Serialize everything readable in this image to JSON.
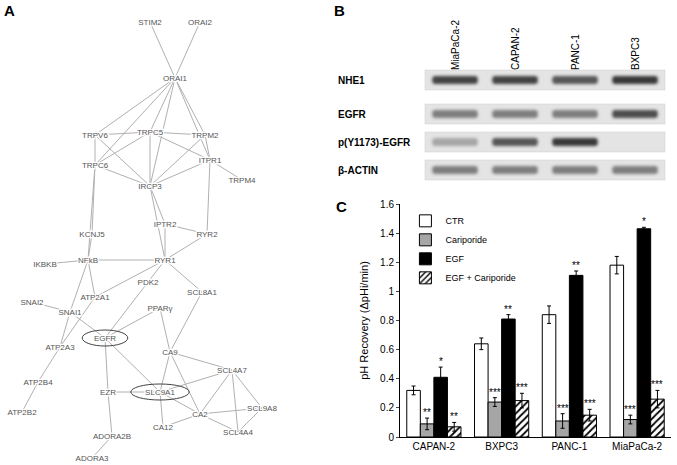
{
  "panel_labels": [
    "A",
    "B",
    "C"
  ],
  "network": {
    "nodes": [
      {
        "label": "STIM2"
      },
      {
        "label": "ORAI2"
      },
      {
        "label": "ORAI1"
      },
      {
        "label": "TRPV6"
      },
      {
        "label": "TRPC5"
      },
      {
        "label": "TRPM2"
      },
      {
        "label": "TRPC6"
      },
      {
        "label": "ITPR1"
      },
      {
        "label": "TRPM4"
      },
      {
        "label": "IRCP3"
      },
      {
        "label": "IPTR2"
      },
      {
        "label": "RYR2"
      },
      {
        "label": "KCNJ5"
      },
      {
        "label": "IKBKB"
      },
      {
        "label": "NFkB"
      },
      {
        "label": "RYR1"
      },
      {
        "label": "PDK2"
      },
      {
        "label": "SCL8A1"
      },
      {
        "label": "ATP2A1"
      },
      {
        "label": "SNAI2"
      },
      {
        "label": "SNAI1"
      },
      {
        "label": "PPARγ"
      },
      {
        "label": "ATP2A3"
      },
      {
        "label": "EGFR",
        "highlight": true
      },
      {
        "label": "CA9"
      },
      {
        "label": "ATP2B4"
      },
      {
        "label": "ATP2B2"
      },
      {
        "label": "EZR"
      },
      {
        "label": "SLC9A1",
        "highlight": true
      },
      {
        "label": "SCL4A7"
      },
      {
        "label": "CA2"
      },
      {
        "label": "CA12"
      },
      {
        "label": "SCL9A8"
      },
      {
        "label": "SCL4A4"
      },
      {
        "label": "ADORA2B"
      },
      {
        "label": "ADORA3"
      }
    ],
    "edges": [
      [
        "STIM2",
        "ORAI1"
      ],
      [
        "ORAI2",
        "ORAI1"
      ],
      [
        "ORAI1",
        "TRPV6"
      ],
      [
        "ORAI1",
        "TRPC5"
      ],
      [
        "ORAI1",
        "TRPC6"
      ],
      [
        "ORAI1",
        "IRCP3"
      ],
      [
        "ORAI1",
        "TRPM2"
      ],
      [
        "ORAI1",
        "ITPR1"
      ],
      [
        "TRPV6",
        "TRPC5"
      ],
      [
        "TRPV6",
        "TRPC6"
      ],
      [
        "TRPV6",
        "IRCP3"
      ],
      [
        "TRPC5",
        "TRPC6"
      ],
      [
        "TRPC5",
        "IRCP3"
      ],
      [
        "TRPC5",
        "TRPM2"
      ],
      [
        "TRPC5",
        "ITPR1"
      ],
      [
        "TRPC6",
        "IRCP3"
      ],
      [
        "TRPM2",
        "ITPR1"
      ],
      [
        "ITPR1",
        "IRCP3"
      ],
      [
        "ITPR1",
        "TRPM4"
      ],
      [
        "TRPM2",
        "IRCP3"
      ],
      [
        "IRCP3",
        "IPTR2"
      ],
      [
        "IRCP3",
        "RYR1"
      ],
      [
        "ITPR1",
        "RYR2"
      ],
      [
        "IPTR2",
        "RYR2"
      ],
      [
        "RYR1",
        "RYR2"
      ],
      [
        "RYR1",
        "IPTR2"
      ],
      [
        "TRPC6",
        "KCNJ5"
      ],
      [
        "KCNJ5",
        "NFkB"
      ],
      [
        "IKBKB",
        "NFkB"
      ],
      [
        "NFkB",
        "RYR1"
      ],
      [
        "NFkB",
        "ATP2A1"
      ],
      [
        "NFkB",
        "SNAI1"
      ],
      [
        "TRPC6",
        "NFkB"
      ],
      [
        "RYR1",
        "PDK2"
      ],
      [
        "RYR1",
        "SCL8A1"
      ],
      [
        "RYR1",
        "ATP2A1"
      ],
      [
        "SNAI2",
        "SNAI1"
      ],
      [
        "SNAI1",
        "EGFR"
      ],
      [
        "SNAI1",
        "ATP2A3"
      ],
      [
        "ATP2A3",
        "ATP2B4"
      ],
      [
        "ATP2B4",
        "ATP2B2"
      ],
      [
        "PDK2",
        "EGFR"
      ],
      [
        "EGFR",
        "PPARγ"
      ],
      [
        "PPARγ",
        "CA9"
      ],
      [
        "SCL8A1",
        "CA9"
      ],
      [
        "EGFR",
        "EZR"
      ],
      [
        "EGFR",
        "SLC9A1"
      ],
      [
        "CA9",
        "SLC9A1"
      ],
      [
        "CA9",
        "CA2"
      ],
      [
        "CA9",
        "SCL4A7"
      ],
      [
        "EZR",
        "SLC9A1"
      ],
      [
        "SLC9A1",
        "CA2"
      ],
      [
        "SLC9A1",
        "CA12"
      ],
      [
        "SLC9A1",
        "SCL4A7"
      ],
      [
        "CA2",
        "SCL4A7"
      ],
      [
        "CA2",
        "SCL9A8"
      ],
      [
        "CA2",
        "SCL4A4"
      ],
      [
        "CA2",
        "CA12"
      ],
      [
        "SCL4A7",
        "SCL9A8"
      ],
      [
        "SCL4A7",
        "SCL4A4"
      ],
      [
        "SCL9A8",
        "SCL4A4"
      ],
      [
        "EZR",
        "ADORA2B"
      ],
      [
        "ADORA2B",
        "ADORA3"
      ],
      [
        "ATP2A1",
        "ATP2A3"
      ]
    ]
  },
  "blot": {
    "lanes": [
      "MiaPaCa-2",
      "CAPAN-2",
      "PANC-1",
      "BXPC3"
    ],
    "rows": [
      {
        "label": "NHE1",
        "intensity": [
          0.8,
          0.8,
          0.7,
          0.85
        ]
      },
      {
        "label": "EGFR",
        "intensity": [
          0.5,
          0.5,
          0.5,
          0.75
        ]
      },
      {
        "label": "p(Y1173)-EGFR",
        "intensity": [
          0.3,
          0.7,
          0.85,
          0
        ]
      },
      {
        "label": "β-ACTIN",
        "intensity": [
          0.5,
          0.5,
          0.5,
          0.5
        ]
      }
    ]
  },
  "chart_data": {
    "type": "bar",
    "y_label": "pH Recovery (ΔpHi/min)",
    "categories": [
      "CAPAN-2",
      "BXPC3",
      "PANC-1",
      "MiaPaCa-2"
    ],
    "series": [
      {
        "name": "CTR",
        "color": "#ffffff",
        "values": [
          0.32,
          0.64,
          0.84,
          1.18
        ],
        "errors": [
          0.03,
          0.04,
          0.06,
          0.06
        ],
        "significance": [
          null,
          null,
          null,
          null
        ]
      },
      {
        "name": "Cariporide",
        "color": "#a6a6a6",
        "values": [
          0.09,
          0.24,
          0.11,
          0.12
        ],
        "errors": [
          0.04,
          0.03,
          0.05,
          0.03
        ],
        "significance": [
          "**",
          "***",
          "***",
          "***"
        ]
      },
      {
        "name": "EGF",
        "color": "#000000",
        "values": [
          0.41,
          0.81,
          1.11,
          1.43
        ],
        "errors": [
          0.07,
          0.03,
          0.03,
          0.01
        ],
        "significance": [
          "*",
          "**",
          "**",
          "*"
        ]
      },
      {
        "name": "EGF + Cariporide",
        "color": "#ffffff",
        "marker": "hatch",
        "values": [
          0.07,
          0.25,
          0.15,
          0.26
        ],
        "errors": [
          0.03,
          0.05,
          0.04,
          0.06
        ],
        "significance": [
          "**",
          "***",
          "***",
          "***"
        ]
      }
    ],
    "ylim": [
      0,
      1.6
    ],
    "yticks": [
      0,
      0.2,
      0.4,
      0.6,
      0.8,
      1,
      1.2,
      1.4,
      1.6
    ],
    "legend": "upper left",
    "grid": false
  }
}
